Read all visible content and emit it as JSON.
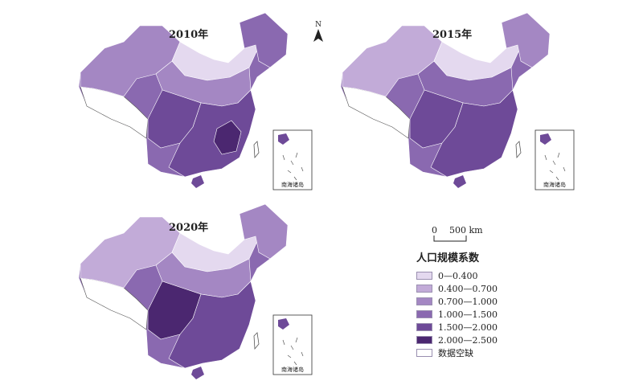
{
  "maps": [
    {
      "title": "2010年"
    },
    {
      "title": "2015年"
    },
    {
      "title": "2020年"
    }
  ],
  "inset_label": "南海诸岛",
  "north_label": "N",
  "scale": {
    "zero": "0",
    "distance": "500 km"
  },
  "legend": {
    "title": "人口规模系数",
    "items": [
      {
        "label": "0—0.400",
        "color": "#e4d9ef"
      },
      {
        "label": "0.400—0.700",
        "color": "#c2abd8"
      },
      {
        "label": "0.700—1.000",
        "color": "#a487c3"
      },
      {
        "label": "1.000—1.500",
        "color": "#8a69b0"
      },
      {
        "label": "1.500—2.000",
        "color": "#6e4a98"
      },
      {
        "label": "2.000—2.500",
        "color": "#4b2770"
      },
      {
        "label": "数据空缺",
        "color": "#ffffff"
      }
    ]
  }
}
